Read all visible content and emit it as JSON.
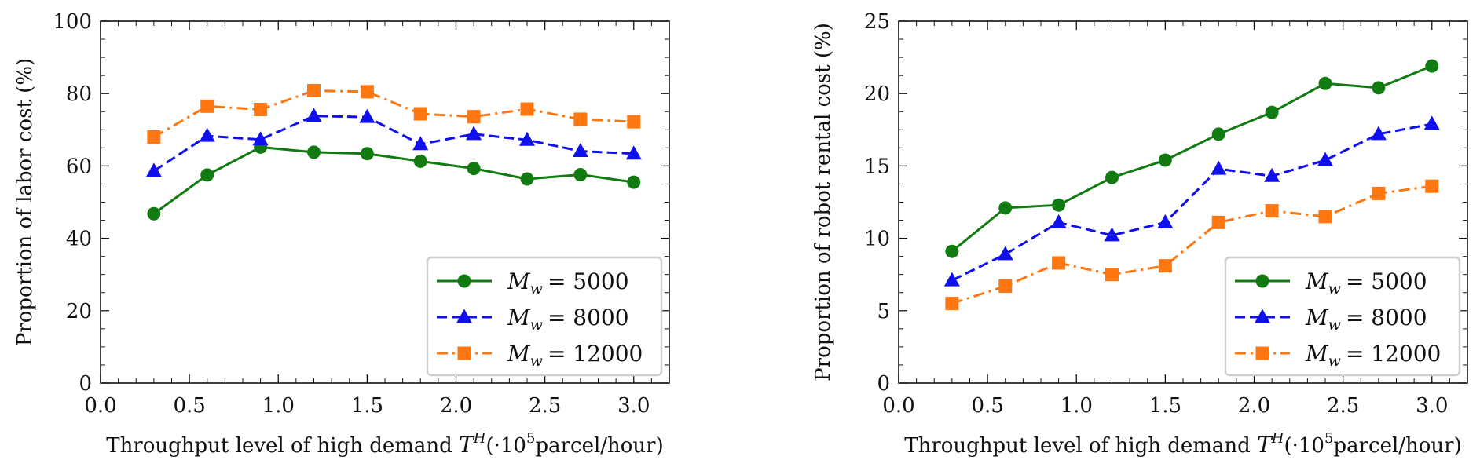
{
  "chart_data": [
    {
      "type": "line",
      "ylabel": "Proportion of labor cost (%)",
      "xlabel_parts": [
        "Throughput level of high demand ",
        "T",
        "H",
        "(·10",
        "5",
        "parcel/hour)"
      ],
      "xlim": [
        0.0,
        3.2
      ],
      "ylim": [
        0,
        100
      ],
      "x_ticks": [
        "0.0",
        "0.5",
        "1.0",
        "1.5",
        "2.0",
        "2.5",
        "3.0"
      ],
      "x_tick_values": [
        0.0,
        0.5,
        1.0,
        1.5,
        2.0,
        2.5,
        3.0
      ],
      "y_ticks": [
        "0",
        "20",
        "40",
        "60",
        "80",
        "100"
      ],
      "y_tick_values": [
        0,
        20,
        40,
        60,
        80,
        100
      ],
      "legend_position": "lower-right",
      "x": [
        0.3,
        0.6,
        0.9,
        1.2,
        1.5,
        1.8,
        2.1,
        2.4,
        2.7,
        3.0
      ],
      "series": [
        {
          "legend_var": "M",
          "legend_sub": "w",
          "legend_value": "= 5000",
          "color": "#117a11",
          "marker": "circle",
          "dash": "solid",
          "values": [
            46.8,
            57.5,
            65.2,
            63.8,
            63.4,
            61.3,
            59.3,
            56.4,
            57.6,
            55.5
          ]
        },
        {
          "legend_var": "M",
          "legend_sub": "w",
          "legend_value": "= 8000",
          "color": "#1010ee",
          "marker": "triangle",
          "dash": "dashed",
          "values": [
            58.6,
            68.3,
            67.3,
            73.8,
            73.5,
            66.0,
            68.8,
            67.2,
            64.1,
            63.4
          ]
        },
        {
          "legend_var": "M",
          "legend_sub": "w",
          "legend_value": "= 12000",
          "color": "#ff7711",
          "marker": "square",
          "dash": "dashdot",
          "values": [
            68.0,
            76.5,
            75.6,
            80.8,
            80.5,
            74.4,
            73.6,
            75.7,
            72.9,
            72.2
          ]
        }
      ]
    },
    {
      "type": "line",
      "ylabel": "Proportion of robot rental cost (%)",
      "xlabel_parts": [
        "Throughput level of high demand ",
        "T",
        "H",
        "(·10",
        "5",
        "parcel/hour)"
      ],
      "xlim": [
        0.0,
        3.2
      ],
      "ylim": [
        0,
        25
      ],
      "x_ticks": [
        "0.0",
        "0.5",
        "1.0",
        "1.5",
        "2.0",
        "2.5",
        "3.0"
      ],
      "x_tick_values": [
        0.0,
        0.5,
        1.0,
        1.5,
        2.0,
        2.5,
        3.0
      ],
      "y_ticks": [
        "0",
        "5",
        "10",
        "15",
        "20",
        "25"
      ],
      "y_tick_values": [
        0,
        5,
        10,
        15,
        20,
        25
      ],
      "legend_position": "lower-right",
      "x": [
        0.3,
        0.6,
        0.9,
        1.2,
        1.5,
        1.8,
        2.1,
        2.4,
        2.7,
        3.0
      ],
      "series": [
        {
          "legend_var": "M",
          "legend_sub": "w",
          "legend_value": "= 5000",
          "color": "#117a11",
          "marker": "circle",
          "dash": "solid",
          "values": [
            9.1,
            12.1,
            12.3,
            14.2,
            15.4,
            17.2,
            18.7,
            20.7,
            20.4,
            21.9
          ]
        },
        {
          "legend_var": "M",
          "legend_sub": "w",
          "legend_value": "= 8000",
          "color": "#1010ee",
          "marker": "triangle",
          "dash": "dashed",
          "values": [
            7.1,
            8.9,
            11.1,
            10.2,
            11.1,
            14.8,
            14.3,
            15.4,
            17.2,
            17.9
          ]
        },
        {
          "legend_var": "M",
          "legend_sub": "w",
          "legend_value": "= 12000",
          "color": "#ff7711",
          "marker": "square",
          "dash": "dashdot",
          "values": [
            5.5,
            6.7,
            8.3,
            7.5,
            8.1,
            11.1,
            11.9,
            11.5,
            13.1,
            13.6
          ]
        }
      ]
    }
  ]
}
